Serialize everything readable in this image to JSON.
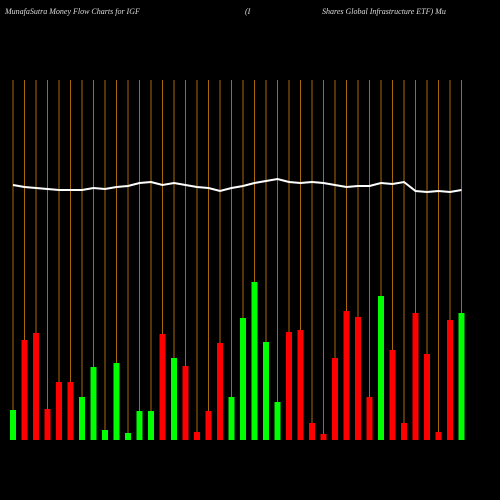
{
  "chart_data": {
    "type": "bar",
    "title_parts": [
      "MunafaSutra  Money Flow  Charts for IGF",
      "(I",
      "Shares Global Infrastructure  ETF) Mu"
    ],
    "categories": [
      null,
      null,
      null,
      null,
      null,
      null,
      null,
      null,
      null,
      null,
      null,
      null,
      null,
      null,
      null,
      null,
      null,
      null,
      null,
      null,
      null,
      null,
      null,
      null,
      null,
      null,
      null,
      null,
      null,
      null,
      null,
      null,
      null,
      null,
      null,
      null,
      null,
      null,
      null,
      null
    ],
    "ylim": [
      0,
      300
    ],
    "grid": true,
    "grid_color": "#d4820a",
    "series": [
      {
        "type": "bar",
        "values": [
          30,
          100,
          107,
          31,
          58,
          58,
          43,
          73,
          10,
          77,
          7,
          29,
          29,
          106,
          82,
          74,
          8,
          29,
          97,
          43,
          122,
          158,
          98,
          38,
          108,
          110,
          17,
          6,
          82,
          129,
          123,
          43,
          144,
          90,
          17,
          127,
          86,
          8,
          120,
          127
        ],
        "colors": [
          "#00ff00",
          "#ff0000",
          "#ff0000",
          "#ff0000",
          "#ff0000",
          "#ff0000",
          "#00ff00",
          "#00ff00",
          "#00ff00",
          "#00ff00",
          "#00ff00",
          "#00ff00",
          "#00ff00",
          "#ff0000",
          "#00ff00",
          "#ff0000",
          "#ff0000",
          "#ff0000",
          "#ff0000",
          "#00ff00",
          "#00ff00",
          "#00ff00",
          "#00ff00",
          "#00ff00",
          "#ff0000",
          "#ff0000",
          "#ff0000",
          "#ff0000",
          "#ff0000",
          "#ff0000",
          "#ff0000",
          "#ff0000",
          "#00ff00",
          "#ff0000",
          "#ff0000",
          "#ff0000",
          "#ff0000",
          "#ff0000",
          "#ff0000",
          "#00ff00"
        ]
      },
      {
        "type": "line",
        "color": "#ffffff",
        "values": [
          255,
          253,
          252,
          251,
          250,
          250,
          250,
          252,
          251,
          253,
          254,
          257,
          258,
          255,
          257,
          255,
          253,
          252,
          249,
          252,
          254,
          257,
          259,
          261,
          258,
          257,
          258,
          257,
          255,
          253,
          254,
          254,
          257,
          256,
          258,
          249,
          248,
          249,
          248,
          250
        ]
      }
    ]
  }
}
